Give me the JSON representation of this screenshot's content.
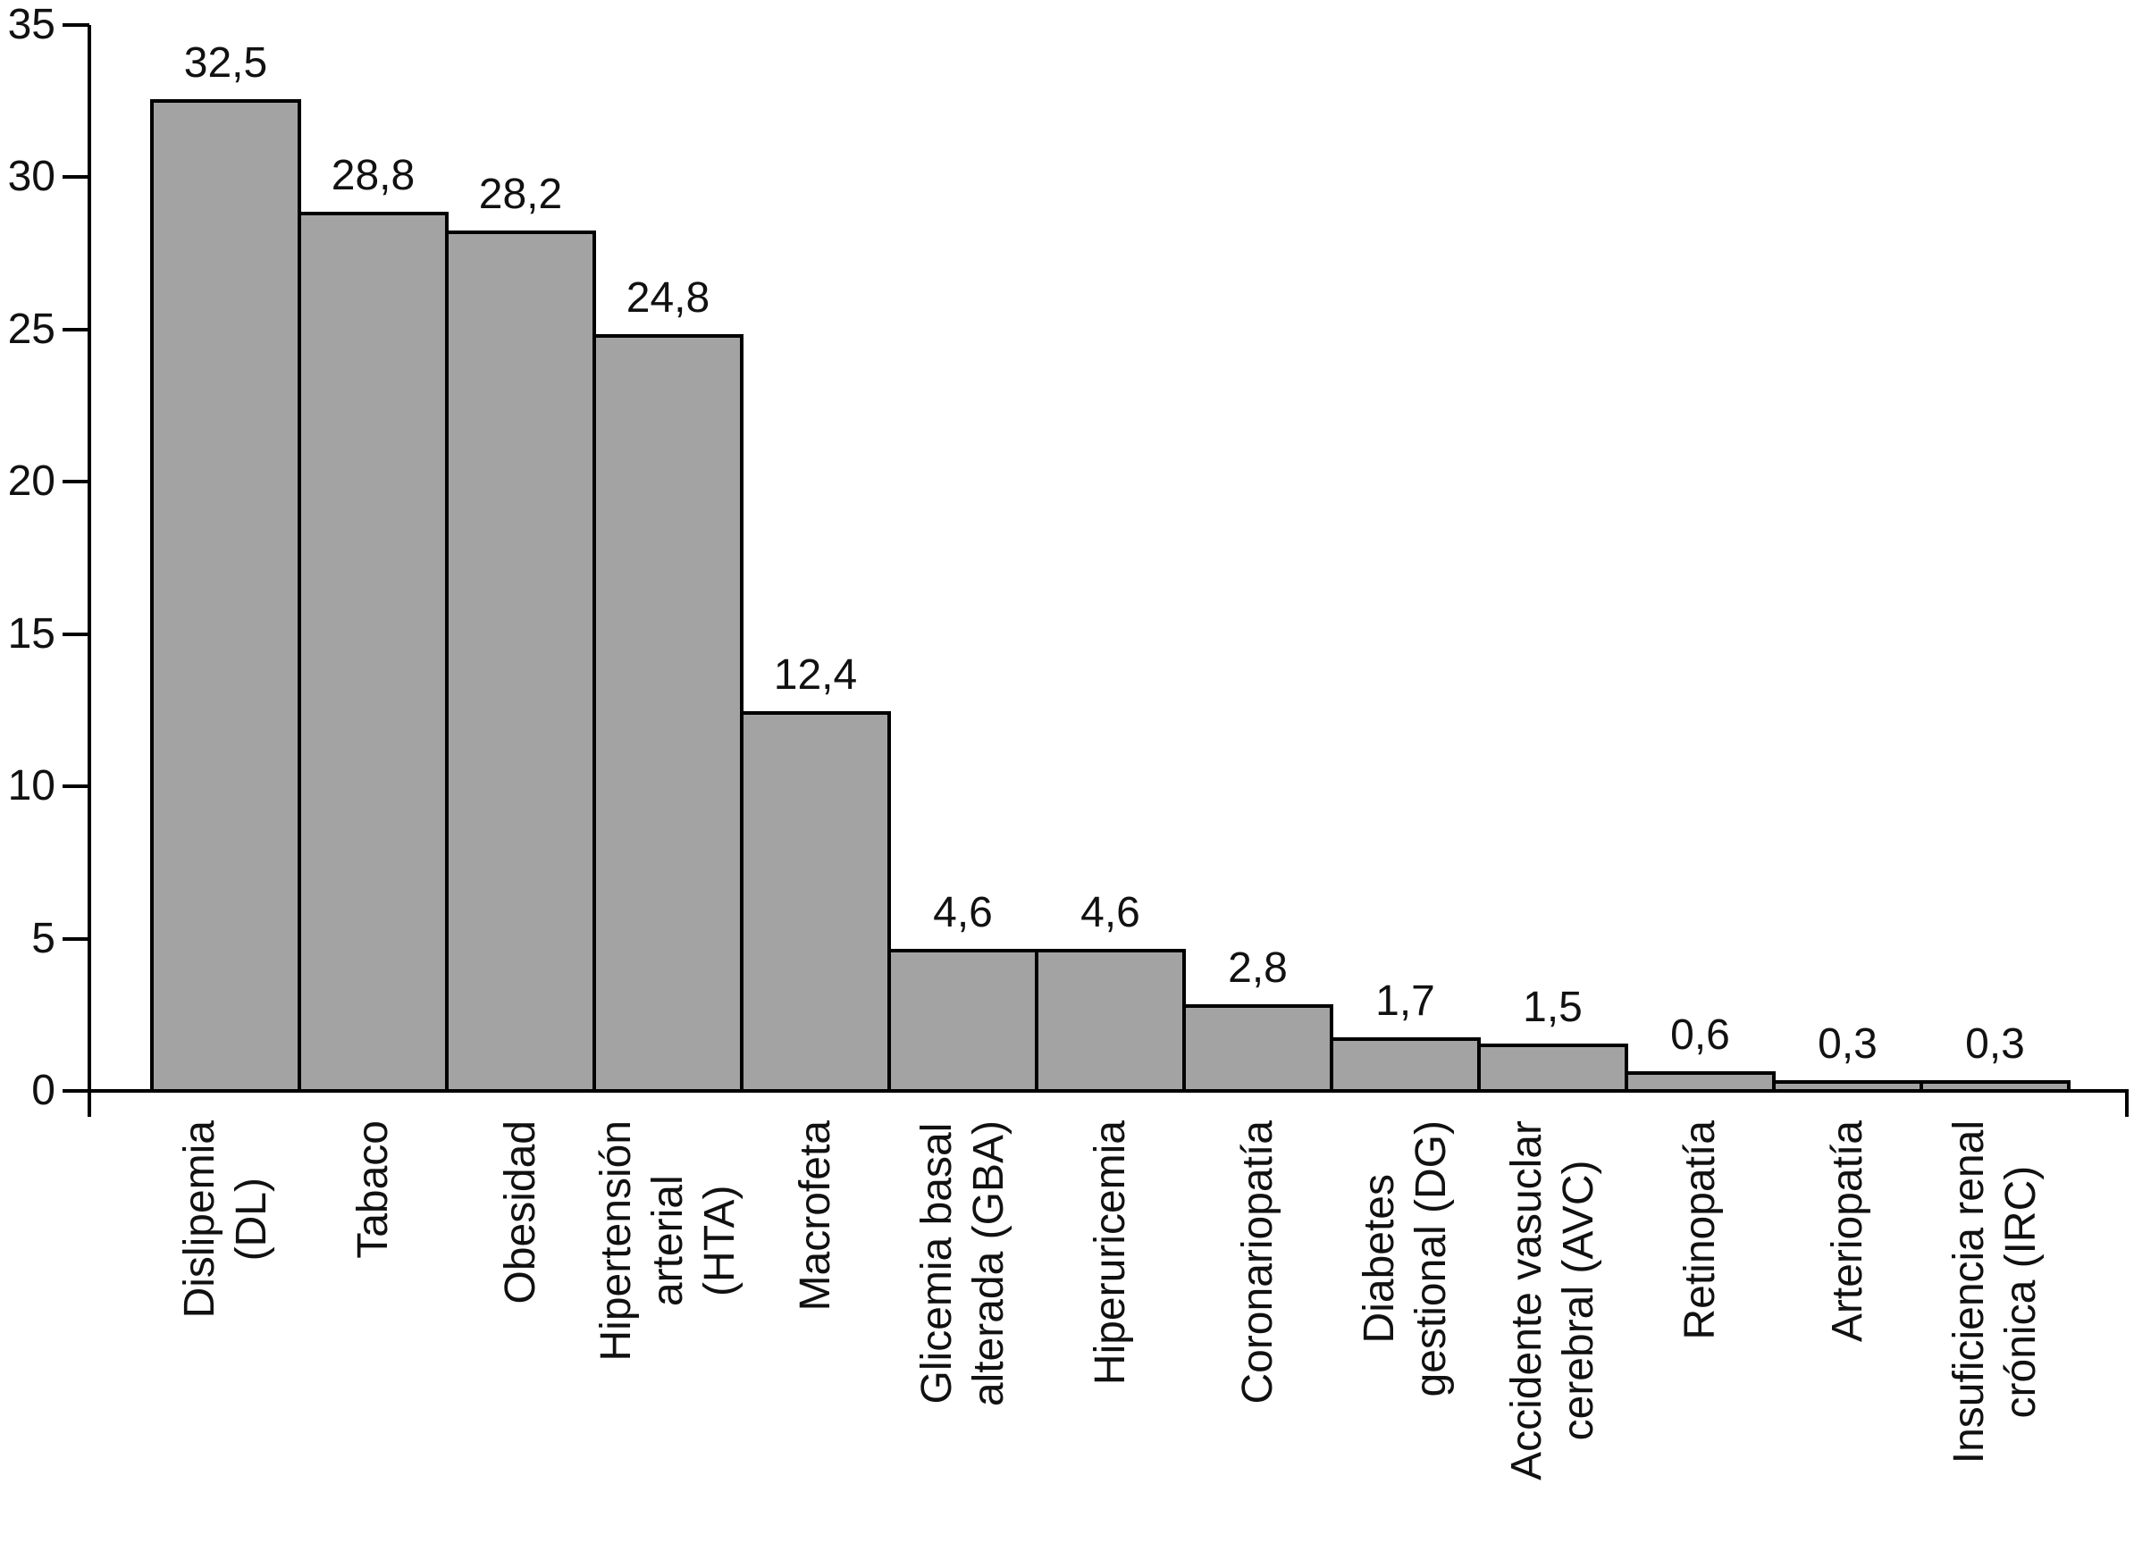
{
  "chart_data": {
    "type": "bar",
    "title": "",
    "xlabel": "",
    "ylabel": "",
    "ylim": [
      0,
      35
    ],
    "yticks": [
      0,
      5,
      10,
      15,
      20,
      25,
      30,
      35
    ],
    "grid": false,
    "legend": false,
    "categories": [
      "Dislipemia (DL)",
      "Tabaco",
      "Obesidad",
      "Hipertensión arterial (HTA)",
      "Macrofeta",
      "Glicemia basal alterada (GBA)",
      "Hiperuricemia",
      "Coronariopatía",
      "Diabetes gestional (DG)",
      "Accidente vasuclar cerebral (AVC)",
      "Retinopatía",
      "Arteriopatía",
      "Insuficiencia renal crónica (IRC)"
    ],
    "category_lines": [
      [
        "Dislipemia",
        "(DL)"
      ],
      [
        "Tabaco"
      ],
      [
        "Obesidad"
      ],
      [
        "Hipertensión",
        "arterial",
        "(HTA)"
      ],
      [
        "Macrofeta"
      ],
      [
        "Glicemia basal",
        "alterada (GBA)"
      ],
      [
        "Hiperuricemia"
      ],
      [
        "Coronariopatía"
      ],
      [
        "Diabetes",
        "gestional (DG)"
      ],
      [
        "Accidente vasuclar",
        "cerebral (AVC)"
      ],
      [
        "Retinopatía"
      ],
      [
        "Arteriopatía"
      ],
      [
        "Insuficiencia renal",
        "crónica (IRC)"
      ]
    ],
    "values": [
      32.5,
      28.8,
      28.2,
      24.8,
      12.4,
      4.6,
      4.6,
      2.8,
      1.7,
      1.5,
      0.6,
      0.3,
      0.3
    ],
    "value_labels": [
      "32,5",
      "28,8",
      "28,2",
      "24,8",
      "12,4",
      "4,6",
      "4,6",
      "2,8",
      "1,7",
      "1,5",
      "0,6",
      "0,3",
      "0,3"
    ],
    "colors": {
      "bar_fill": "#a3a3a3",
      "bar_border": "#000000",
      "axis": "#000000",
      "text": "#111111",
      "background": "#ffffff"
    }
  }
}
